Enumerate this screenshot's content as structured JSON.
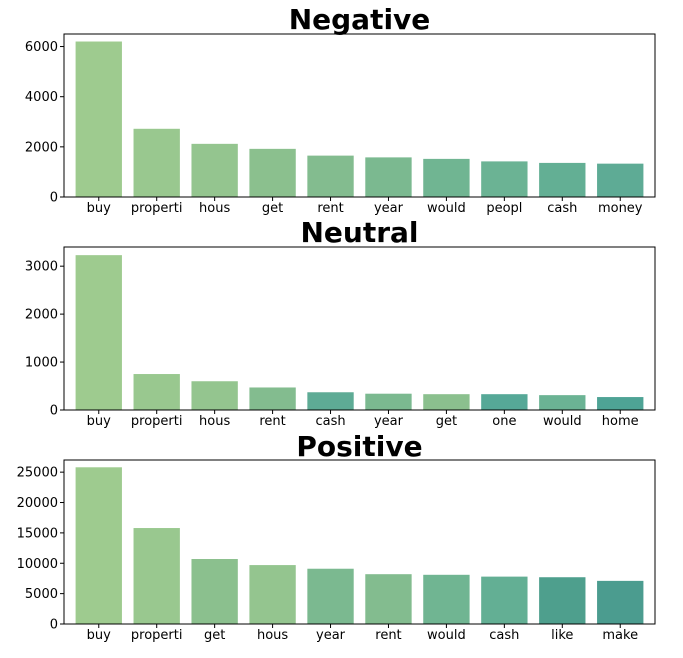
{
  "chart_data": [
    {
      "type": "bar",
      "title": "Negative",
      "categories": [
        "buy",
        "properti",
        "hous",
        "get",
        "rent",
        "year",
        "would",
        "peopl",
        "cash",
        "money"
      ],
      "values": [
        6200,
        2720,
        2120,
        1920,
        1650,
        1580,
        1520,
        1420,
        1360,
        1330
      ],
      "ylim": [
        0,
        6500
      ],
      "yticks": [
        0,
        2000,
        4000,
        6000
      ],
      "colors": [
        "#9ecb8f",
        "#99c88f",
        "#94c58f",
        "#8bc08e",
        "#83bc8f",
        "#7bb990",
        "#70b592",
        "#6bb394",
        "#63af94",
        "#5eab95"
      ],
      "grid": false,
      "xlabel": "",
      "ylabel": ""
    },
    {
      "type": "bar",
      "title": "Neutral",
      "categories": [
        "buy",
        "properti",
        "hous",
        "rent",
        "cash",
        "year",
        "get",
        "one",
        "would",
        "home"
      ],
      "values": [
        3230,
        750,
        600,
        470,
        370,
        340,
        330,
        330,
        310,
        270
      ],
      "ylim": [
        0,
        3400
      ],
      "yticks": [
        0,
        1000,
        2000,
        3000
      ],
      "colors": [
        "#9ecb8f",
        "#99c88f",
        "#94c58f",
        "#83bc8f",
        "#5eab95",
        "#7bb990",
        "#8bc08e",
        "#56a897",
        "#6bb394",
        "#4ea395"
      ],
      "grid": false,
      "xlabel": "",
      "ylabel": ""
    },
    {
      "type": "bar",
      "title": "Positive",
      "categories": [
        "buy",
        "properti",
        "get",
        "hous",
        "year",
        "rent",
        "would",
        "cash",
        "like",
        "make"
      ],
      "values": [
        25800,
        15800,
        10700,
        9700,
        9100,
        8200,
        8100,
        7800,
        7700,
        7100
      ],
      "ylim": [
        0,
        27000
      ],
      "yticks": [
        0,
        5000,
        10000,
        15000,
        20000,
        25000
      ],
      "colors": [
        "#9ecb8f",
        "#99c88f",
        "#8bc08e",
        "#94c58f",
        "#7bb990",
        "#83bc8f",
        "#70b592",
        "#63af94",
        "#4e9f8d",
        "#4b9c8f"
      ],
      "grid": false,
      "xlabel": "",
      "ylabel": ""
    }
  ]
}
